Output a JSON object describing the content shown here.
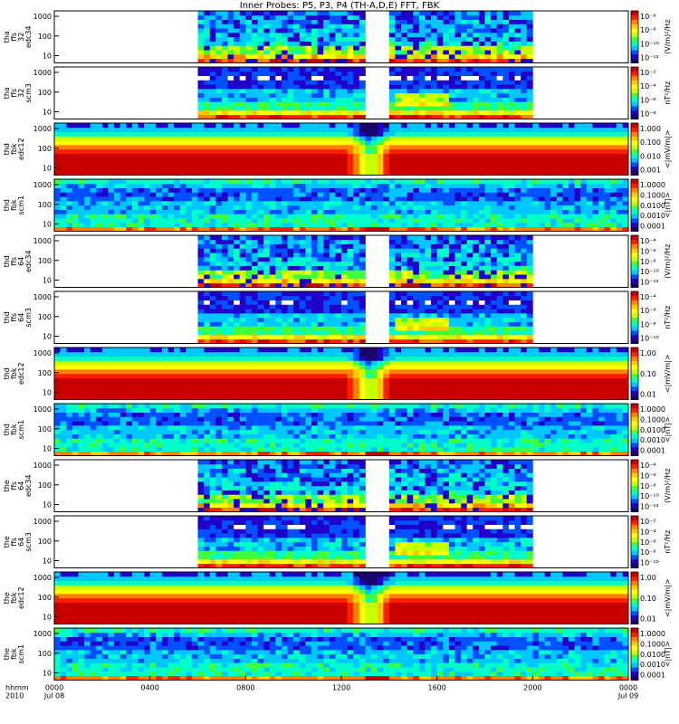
{
  "title": "Inner Probes: P5, P3, P4  (TH-A,D,E) FFT, FBK",
  "footer": {
    "row1": "hhmm",
    "row2": "2010",
    "xticks": [
      "0000",
      "0400",
      "0800",
      "1200",
      "1600",
      "2000",
      "0000"
    ],
    "xdates": [
      "Jul 08",
      "",
      "",
      "",
      "",
      "",
      "Jul 09"
    ]
  },
  "colors": {
    "scale": [
      "#1a006a",
      "#2000c8",
      "#0050ff",
      "#00c8ff",
      "#00ffc8",
      "#40ff40",
      "#c8ff00",
      "#ffff00",
      "#ffc800",
      "#ff8000",
      "#ff2000",
      "#c80000"
    ]
  },
  "chart_data": {
    "type": "heatmap",
    "x_range_hours": [
      0,
      24
    ],
    "panels": [
      {
        "id": "tha-ffs32-edc34",
        "probe": "tha",
        "label": [
          "tha",
          "ffs",
          "32",
          "edc34"
        ],
        "kind": "edc34",
        "yticks": [
          "10",
          "100",
          "1000"
        ],
        "cb_ticks": [
          "10⁻⁶",
          "10⁻⁸",
          "10⁻¹⁰",
          "10⁻¹²"
        ],
        "cb_label": "(V/m)²/Hz",
        "gaps": [
          [
            0,
            5.9
          ],
          [
            13.0,
            14.0
          ],
          [
            19.9,
            24
          ]
        ]
      },
      {
        "id": "tha-ffs32-scm3",
        "probe": "tha",
        "label": [
          "tha",
          "ffs",
          "32",
          "scm3"
        ],
        "kind": "scm3",
        "yticks": [
          "10",
          "100",
          "1000"
        ],
        "cb_ticks": [
          "10⁻²",
          "10⁻⁴",
          "10⁻⁶",
          "10⁻⁸"
        ],
        "cb_label": "nT²/Hz",
        "gaps": [
          [
            0,
            5.9
          ],
          [
            13.0,
            14.0
          ],
          [
            19.9,
            24
          ]
        ]
      },
      {
        "id": "thd-fbk-edc12-a",
        "probe": "thd",
        "label": [
          "thd",
          "fbk",
          "edc12"
        ],
        "kind": "edc12",
        "yticks": [
          "10",
          "100",
          "1000"
        ],
        "cb_ticks": [
          "1.000",
          "0.100",
          "0.010",
          "0.001"
        ],
        "cb_label": "<|mV/m|>",
        "gaps": []
      },
      {
        "id": "thd-fbk-scm1-a",
        "probe": "thd",
        "label": [
          "thd",
          "fbk",
          "scm1"
        ],
        "kind": "scm1",
        "yticks": [
          "10",
          "100",
          "1000"
        ],
        "cb_ticks": [
          "1.0000",
          "0.1000",
          "0.0100",
          "0.0010",
          "0.0001"
        ],
        "cb_label": "<|nT|>",
        "gaps": []
      },
      {
        "id": "thd-ffs64-edc34",
        "probe": "thd",
        "label": [
          "thd",
          "ffs",
          "64",
          "edc34"
        ],
        "kind": "edc34",
        "yticks": [
          "10",
          "100",
          "1000"
        ],
        "cb_ticks": [
          "10⁻⁴",
          "10⁻⁶",
          "10⁻⁸",
          "10⁻¹⁰",
          "10⁻¹²"
        ],
        "cb_label": "(V/m)²/Hz",
        "gaps": [
          [
            0,
            5.9
          ],
          [
            13.0,
            14.0
          ],
          [
            19.9,
            24
          ]
        ]
      },
      {
        "id": "thd-ffs64-scm3",
        "probe": "thd",
        "label": [
          "thd",
          "ffs",
          "64",
          "scm3"
        ],
        "kind": "scm3",
        "yticks": [
          "10",
          "100",
          "1000"
        ],
        "cb_ticks": [
          "10⁻⁴",
          "10⁻⁶",
          "10⁻⁸",
          "10⁻¹⁰"
        ],
        "cb_label": "nT²/Hz",
        "gaps": [
          [
            0,
            5.9
          ],
          [
            13.0,
            14.0
          ],
          [
            19.9,
            24
          ]
        ]
      },
      {
        "id": "thd-fbk-edc12-b",
        "probe": "thd",
        "label": [
          "thd",
          "fbk",
          "edc12"
        ],
        "kind": "edc12",
        "yticks": [
          "10",
          "100",
          "1000"
        ],
        "cb_ticks": [
          "1.00",
          "0.10",
          "0.01"
        ],
        "cb_label": "<|mV/m|>",
        "gaps": []
      },
      {
        "id": "thd-fbk-scm1-b",
        "probe": "thd",
        "label": [
          "thd",
          "fbk",
          "scm1"
        ],
        "kind": "scm1",
        "yticks": [
          "10",
          "100",
          "1000"
        ],
        "cb_ticks": [
          "1.0000",
          "0.1000",
          "0.0100",
          "0.0010",
          "0.0001"
        ],
        "cb_label": "<|nT|>",
        "gaps": []
      },
      {
        "id": "the-ffs64-edc34",
        "probe": "the",
        "label": [
          "the",
          "ffs",
          "64",
          "edc34"
        ],
        "kind": "edc34",
        "yticks": [
          "10",
          "100",
          "1000"
        ],
        "cb_ticks": [
          "10⁻⁴",
          "10⁻⁶",
          "10⁻⁸",
          "10⁻¹⁰",
          "10⁻¹²"
        ],
        "cb_label": "(V/m)²/Hz",
        "gaps": [
          [
            0,
            5.9
          ],
          [
            13.0,
            14.0
          ],
          [
            19.9,
            24
          ]
        ]
      },
      {
        "id": "the-ffs64-scm3",
        "probe": "the",
        "label": [
          "the",
          "ffs",
          "64",
          "scm3"
        ],
        "kind": "scm3",
        "yticks": [
          "10",
          "100",
          "1000"
        ],
        "cb_ticks": [
          "10⁻²",
          "10⁻⁴",
          "10⁻⁶",
          "10⁻⁸",
          "10⁻¹⁰"
        ],
        "cb_label": "nT²/Hz",
        "gaps": [
          [
            0,
            5.9
          ],
          [
            13.0,
            14.0
          ],
          [
            19.9,
            24
          ]
        ]
      },
      {
        "id": "the-fbk-edc12",
        "probe": "the",
        "label": [
          "the",
          "fbk",
          "edc12"
        ],
        "kind": "edc12",
        "yticks": [
          "10",
          "100",
          "1000"
        ],
        "cb_ticks": [
          "1.00",
          "0.10",
          "0.01"
        ],
        "cb_label": "<|mV/m|>",
        "gaps": []
      },
      {
        "id": "the-fbk-scm1",
        "probe": "the",
        "label": [
          "the",
          "fbk",
          "scm1"
        ],
        "kind": "scm1",
        "yticks": [
          "10",
          "100",
          "1000"
        ],
        "cb_ticks": [
          "1.0000",
          "0.1000",
          "0.0100",
          "0.0010",
          "0.0001"
        ],
        "cb_label": "<|nT|>",
        "gaps": []
      }
    ]
  }
}
